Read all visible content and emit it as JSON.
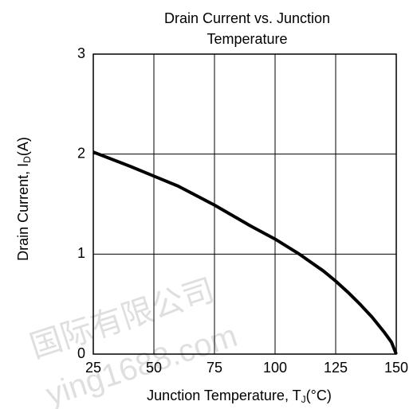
{
  "chart_data": {
    "type": "line",
    "title": [
      "Drain Current vs. Junction",
      "Temperature"
    ],
    "x_label": {
      "text": "Junction Temperature, T",
      "sub": "J",
      "unit": "(°C)"
    },
    "y_label": {
      "text": "Drain Current, I",
      "sub": "D",
      "unit": "(A)"
    },
    "watermark": [
      "国际有限公司",
      "ying1688.com"
    ],
    "x": [
      25,
      40,
      50,
      60,
      75,
      90,
      100,
      110,
      120,
      125,
      130,
      135,
      140,
      145,
      148,
      150
    ],
    "series": [
      {
        "name": "Drain Current",
        "color": "#000000",
        "values": [
          2.02,
          1.88,
          1.78,
          1.68,
          1.49,
          1.28,
          1.15,
          1.0,
          0.83,
          0.73,
          0.62,
          0.5,
          0.37,
          0.22,
          0.12,
          0
        ]
      }
    ],
    "xlim": [
      25,
      150
    ],
    "xticks": [
      25,
      50,
      75,
      100,
      125,
      150
    ],
    "ylim": [
      0,
      3
    ],
    "yticks": [
      0,
      1,
      2,
      3
    ],
    "grid": true
  }
}
